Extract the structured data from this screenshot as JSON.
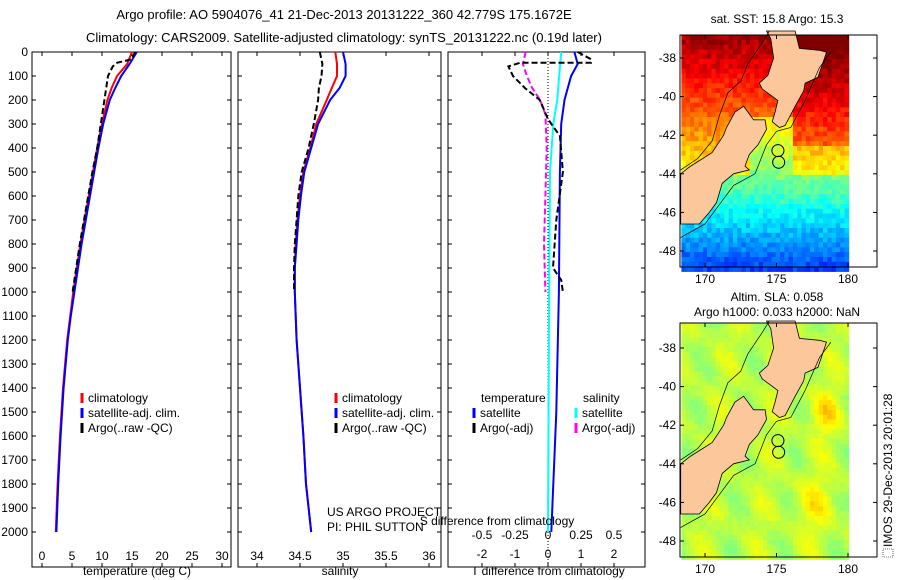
{
  "header": {
    "title_line1": "Argo profile: AO 5904076_41 21-Dec-2013 20131222_360 42.779S 175.1672E",
    "title_line2": "Climatology: CARS2009. Satellite-adjusted climatology: synTS_20131222.nc (0.19d later)"
  },
  "footer_stamp": "IMOS 29-Dec-2013 20:01:28",
  "credits": {
    "line1": "US ARGO PROJECT",
    "line2": "PI: PHIL SUTTON"
  },
  "colors": {
    "climatology": "#ff0000",
    "satellite": "#0000ff",
    "argo": "#000000",
    "sal_satellite": "#00ffff",
    "sal_argo": "#ff00ff",
    "land": "#fcc89b"
  },
  "chart_data": [
    {
      "type": "line",
      "id": "temperature",
      "xlabel": "temperature (deg C)",
      "ylabel": "depth",
      "xlim": [
        -1.7,
        31.5
      ],
      "ylim": [
        0,
        2150
      ],
      "yreversed": true,
      "xticks": [
        0,
        5,
        10,
        15,
        20,
        25,
        30
      ],
      "yticks": [
        0,
        100,
        200,
        300,
        400,
        500,
        600,
        700,
        800,
        900,
        1000,
        1100,
        1200,
        1300,
        1400,
        1500,
        1600,
        1700,
        1800,
        1900,
        2000
      ],
      "legend": [
        "climatology",
        "satellite-adj. clim.",
        "Argo(..raw -QC)"
      ],
      "series": [
        {
          "name": "climatology",
          "depth": [
            0,
            50,
            100,
            150,
            200,
            300,
            400,
            500,
            600,
            700,
            800,
            900,
            1000,
            1100,
            1200,
            1400,
            1600,
            1800,
            2000
          ],
          "values": [
            15.0,
            14.2,
            12.5,
            11.6,
            10.9,
            10.0,
            9.2,
            8.5,
            7.8,
            7.1,
            6.4,
            5.8,
            5.2,
            4.7,
            4.2,
            3.5,
            3.0,
            2.6,
            2.3
          ]
        },
        {
          "name": "satellite-adj. clim.",
          "depth": [
            0,
            50,
            100,
            150,
            200,
            300,
            400,
            500,
            600,
            700,
            800,
            900,
            1000,
            1100,
            1200,
            1400,
            1600,
            1800,
            2000
          ],
          "values": [
            15.8,
            14.6,
            13.2,
            12.2,
            11.3,
            10.2,
            9.4,
            8.7,
            8.0,
            7.3,
            6.6,
            6.0,
            5.4,
            4.8,
            4.3,
            3.6,
            3.1,
            2.7,
            2.4
          ]
        },
        {
          "name": "Argo(..raw -QC)",
          "depth": [
            0,
            30,
            45,
            60,
            100,
            150,
            200,
            250,
            300,
            400,
            500,
            600,
            700,
            800,
            900,
            1000
          ],
          "values": [
            15.5,
            15.0,
            12.5,
            11.8,
            11.0,
            10.7,
            10.4,
            10.1,
            9.8,
            9.2,
            8.4,
            7.7,
            7.0,
            6.3,
            5.7,
            5.1
          ]
        }
      ]
    },
    {
      "type": "line",
      "id": "salinity",
      "xlabel": "salinity",
      "xlim": [
        33.78,
        36.14
      ],
      "ylim": [
        0,
        2150
      ],
      "yreversed": true,
      "xticks": [
        34,
        34.5,
        35,
        35.5,
        36
      ],
      "legend": [
        "climatology",
        "satellite-adj. clim.",
        "Argo(..raw -QC)"
      ],
      "series": [
        {
          "name": "climatology",
          "depth": [
            0,
            50,
            100,
            150,
            200,
            300,
            400,
            500,
            600,
            700,
            800,
            900,
            1000,
            1200,
            1400,
            1600,
            1800,
            2000
          ],
          "values": [
            34.91,
            34.93,
            34.93,
            34.87,
            34.81,
            34.69,
            34.62,
            34.54,
            34.5,
            34.47,
            34.45,
            34.44,
            34.44,
            34.46,
            34.5,
            34.54,
            34.57,
            34.63
          ]
        },
        {
          "name": "satellite-adj. clim.",
          "depth": [
            0,
            50,
            100,
            150,
            200,
            300,
            400,
            500,
            600,
            700,
            800,
            900,
            1000,
            1200,
            1400,
            1600,
            1800,
            2000
          ],
          "values": [
            35.0,
            35.03,
            35.03,
            34.96,
            34.85,
            34.71,
            34.63,
            34.55,
            34.51,
            34.48,
            34.46,
            34.44,
            34.44,
            34.46,
            34.5,
            34.54,
            34.57,
            34.63
          ]
        },
        {
          "name": "Argo(..raw -QC)",
          "depth": [
            0,
            50,
            100,
            150,
            200,
            300,
            400,
            500,
            600,
            700,
            800,
            900,
            1000
          ],
          "values": [
            34.73,
            34.76,
            34.75,
            34.72,
            34.71,
            34.66,
            34.6,
            34.52,
            34.48,
            34.46,
            34.44,
            34.43,
            34.43
          ]
        }
      ]
    },
    {
      "type": "line",
      "id": "difference",
      "xlabel": "T difference from climatology",
      "x2label": "S difference from climatology",
      "xlim": [
        -3.1,
        2.9
      ],
      "x2lim": [
        -0.775,
        0.725
      ],
      "ylim": [
        0,
        2150
      ],
      "yreversed": true,
      "xticks": [
        -2,
        -1,
        0,
        1,
        2
      ],
      "x2ticks": [
        -0.5,
        -0.25,
        0,
        0.25,
        0.5
      ],
      "legend": {
        "temperature_header": "temperature",
        "salinity_header": "salinity",
        "t_sat": "satellite",
        "t_argo": "Argo(-adj)",
        "s_sat": "satellite",
        "s_argo": "Argo(-adj)"
      },
      "series": [
        {
          "name": "T satellite",
          "axis": "T",
          "depth": [
            0,
            50,
            100,
            200,
            300,
            500,
            1000,
            1500,
            2000
          ],
          "values": [
            0.8,
            0.9,
            0.7,
            0.5,
            0.4,
            0.36,
            0.33,
            0.25,
            0.1
          ]
        },
        {
          "name": "T Argo(-adj)",
          "axis": "T",
          "depth": [
            0,
            30,
            45,
            45,
            60,
            100,
            150,
            200,
            280,
            350,
            500,
            700,
            900,
            950,
            1000
          ],
          "values": [
            0.9,
            1.3,
            1.3,
            -0.85,
            -1.2,
            -1.06,
            -0.7,
            -0.25,
            0.0,
            0.36,
            0.45,
            0.25,
            0.15,
            0.4,
            0.45
          ]
        },
        {
          "name": "S satellite",
          "axis": "S",
          "depth": [
            0,
            100,
            200,
            300,
            500,
            1000,
            2000
          ],
          "values": [
            0.1,
            0.085,
            0.07,
            0.04,
            0.015,
            0.008,
            0.0
          ]
        },
        {
          "name": "S Argo(-adj)",
          "axis": "S",
          "depth": [
            0,
            50,
            100,
            150,
            200,
            260,
            400,
            600,
            800,
            1000
          ],
          "values": [
            -0.17,
            -0.19,
            -0.16,
            -0.12,
            -0.06,
            -0.02,
            -0.01,
            -0.02,
            -0.03,
            -0.02
          ]
        }
      ]
    },
    {
      "type": "heatmap",
      "id": "sst_map",
      "title": "sat. SST: 15.8 Argo: 15.3",
      "xlim": [
        168.3,
        182.1
      ],
      "ylim": [
        -48.9,
        -36.8
      ],
      "xticks": [
        170,
        175,
        180
      ],
      "yticks": [
        -38,
        -40,
        -42,
        -44,
        -46,
        -48
      ]
    },
    {
      "type": "heatmap",
      "id": "sla_map",
      "title_line1": "Altim. SLA: 0.058",
      "title_line2": "Argo h1000: 0.033 h2000: NaN",
      "xlim": [
        168.3,
        182.1
      ],
      "ylim": [
        -48.9,
        -36.7
      ],
      "xticks": [
        170,
        175,
        180
      ],
      "yticks": [
        -38,
        -40,
        -42,
        -44,
        -46,
        -48
      ]
    }
  ]
}
